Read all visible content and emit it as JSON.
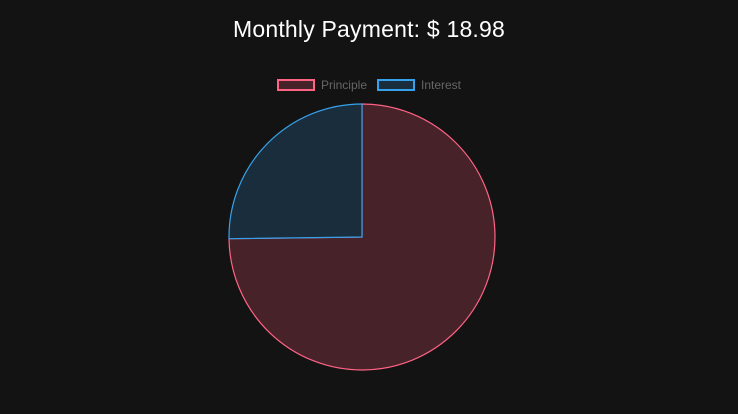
{
  "chart_data": {
    "type": "pie",
    "title_prefix": "Monthly Payment:",
    "title_currency": "$",
    "title_amount": "18.98",
    "legend_position": "top",
    "series": [
      {
        "name": "Principle",
        "value": 74.8,
        "fill": "#472329",
        "stroke": "#ff6384"
      },
      {
        "name": "Interest",
        "value": 25.2,
        "fill": "#1a2d3d",
        "stroke": "#36a2eb"
      }
    ]
  }
}
